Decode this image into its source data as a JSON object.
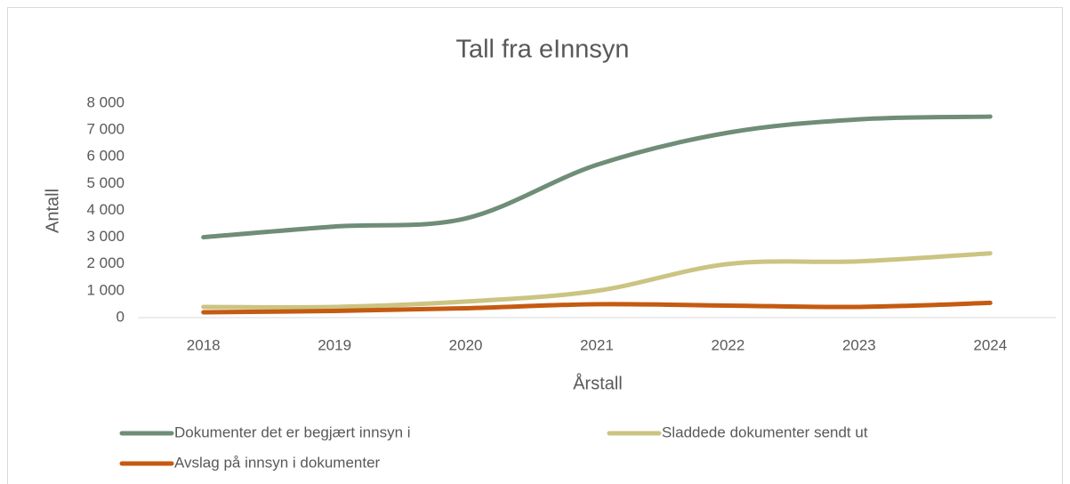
{
  "chart_data": {
    "type": "line",
    "title": "Tall fra eInnsyn",
    "x_label": "Årstall",
    "y_label": "Antall",
    "categories": [
      "2018",
      "2019",
      "2020",
      "2021",
      "2022",
      "2023",
      "2024"
    ],
    "series": [
      {
        "name": "Dokumenter det er begjært innsyn i",
        "color": "#6f8d77",
        "values": [
          3000,
          3400,
          3700,
          5700,
          6900,
          7400,
          7500
        ]
      },
      {
        "name": "Sladdede dokumenter sendt ut",
        "color": "#cbc482",
        "values": [
          400,
          400,
          600,
          1000,
          2000,
          2100,
          2400
        ]
      },
      {
        "name": "Avslag på innsyn i dokumenter",
        "color": "#c55a11",
        "values": [
          200,
          250,
          350,
          500,
          450,
          400,
          550
        ]
      }
    ],
    "ylim": [
      0,
      8000
    ],
    "yticks": [
      0,
      {
        "value": 1000,
        "label": "1 000"
      },
      {
        "value": 2000,
        "label": "2 000"
      },
      {
        "value": 3000,
        "label": "3 000"
      },
      {
        "value": 4000,
        "label": "4 000"
      },
      {
        "value": 5000,
        "label": "5 000"
      },
      {
        "value": 6000,
        "label": "6 000"
      },
      {
        "value": 7000,
        "label": "7 000"
      },
      {
        "value": 8000,
        "label": "8 000"
      }
    ],
    "grid": false,
    "smooth": true,
    "legend": "bottom"
  }
}
